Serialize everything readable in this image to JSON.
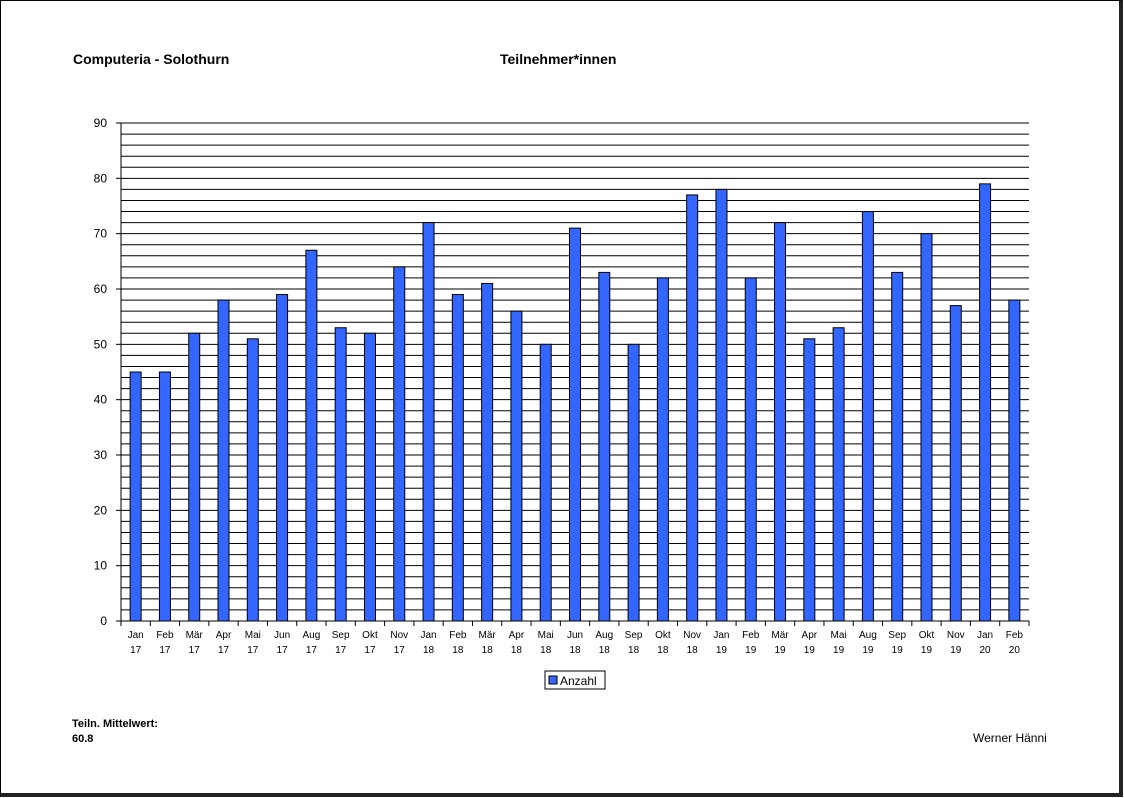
{
  "header": {
    "left_title": "Computeria - Solothurn",
    "center_title": "Teilnehmer*innen"
  },
  "footer": {
    "mean_label": "Teiln. Mittelwert:",
    "mean_value": "60.8",
    "author": "Werner Hänni"
  },
  "chart_data": {
    "type": "bar",
    "categories": [
      [
        "Jan",
        "17"
      ],
      [
        "Feb",
        "17"
      ],
      [
        "Mär",
        "17"
      ],
      [
        "Apr",
        "17"
      ],
      [
        "Mai",
        "17"
      ],
      [
        "Jun",
        "17"
      ],
      [
        "Aug",
        "17"
      ],
      [
        "Sep",
        "17"
      ],
      [
        "Okt",
        "17"
      ],
      [
        "Nov",
        "17"
      ],
      [
        "Jan",
        "18"
      ],
      [
        "Feb",
        "18"
      ],
      [
        "Mär",
        "18"
      ],
      [
        "Apr",
        "18"
      ],
      [
        "Mai",
        "18"
      ],
      [
        "Jun",
        "18"
      ],
      [
        "Aug",
        "18"
      ],
      [
        "Sep",
        "18"
      ],
      [
        "Okt",
        "18"
      ],
      [
        "Nov",
        "18"
      ],
      [
        "Jan",
        "19"
      ],
      [
        "Feb",
        "19"
      ],
      [
        "Mär",
        "19"
      ],
      [
        "Apr",
        "19"
      ],
      [
        "Mai",
        "19"
      ],
      [
        "Aug",
        "19"
      ],
      [
        "Sep",
        "19"
      ],
      [
        "Okt",
        "19"
      ],
      [
        "Nov",
        "19"
      ],
      [
        "Jan",
        "20"
      ],
      [
        "Feb",
        "20"
      ]
    ],
    "series": [
      {
        "name": "Anzahl",
        "color": "#3366ff",
        "values": [
          45,
          45,
          52,
          58,
          51,
          59,
          67,
          53,
          52,
          64,
          72,
          59,
          61,
          56,
          50,
          71,
          63,
          50,
          62,
          77,
          78,
          62,
          72,
          51,
          53,
          74,
          63,
          70,
          57,
          79,
          58
        ]
      }
    ],
    "ylim": [
      0,
      90
    ],
    "y_major_ticks": [
      0,
      10,
      20,
      30,
      40,
      50,
      60,
      70,
      80,
      90
    ],
    "grid": "horizontal every 2 units",
    "legend": "bottom-center"
  }
}
